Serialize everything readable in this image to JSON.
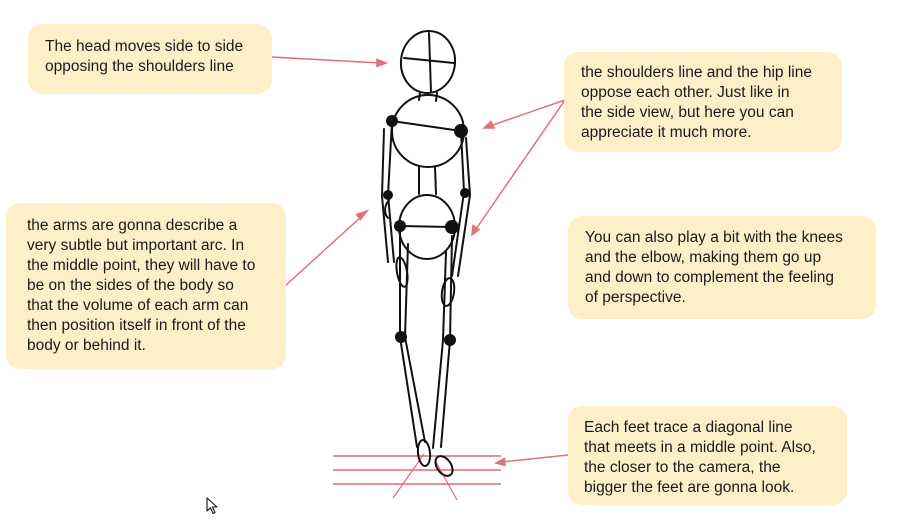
{
  "notes": {
    "head": "The head moves side to side\nopposing the shoulders line",
    "shoulders": "the shoulders line and the hip line\noppose each other. Just like in\nthe side view, but here you can\nappreciate it much more.",
    "arms": "the arms are gonna describe a\nvery subtle but important arc. In\nthe middle point, they will have to\nbe on the sides of the body so\nthat the volume of each arm can\nthen position itself in front of the\nbody or behind it.",
    "knees": "You can also play a bit with the knees\nand the elbow, making them go up\nand down to complement the feeling\nof perspective.",
    "feet": "Each feet trace a diagonal line\nthat meets in a middle point. Also,\nthe closer to the camera, the\nbigger the feet are gonna look."
  },
  "colors": {
    "note_background": "#fdf0c9",
    "arrow": "#e0707a",
    "ground_lines": "#e06a74",
    "sketch": "#111111"
  },
  "icons": {
    "cursor": "mouse-pointer-icon"
  }
}
